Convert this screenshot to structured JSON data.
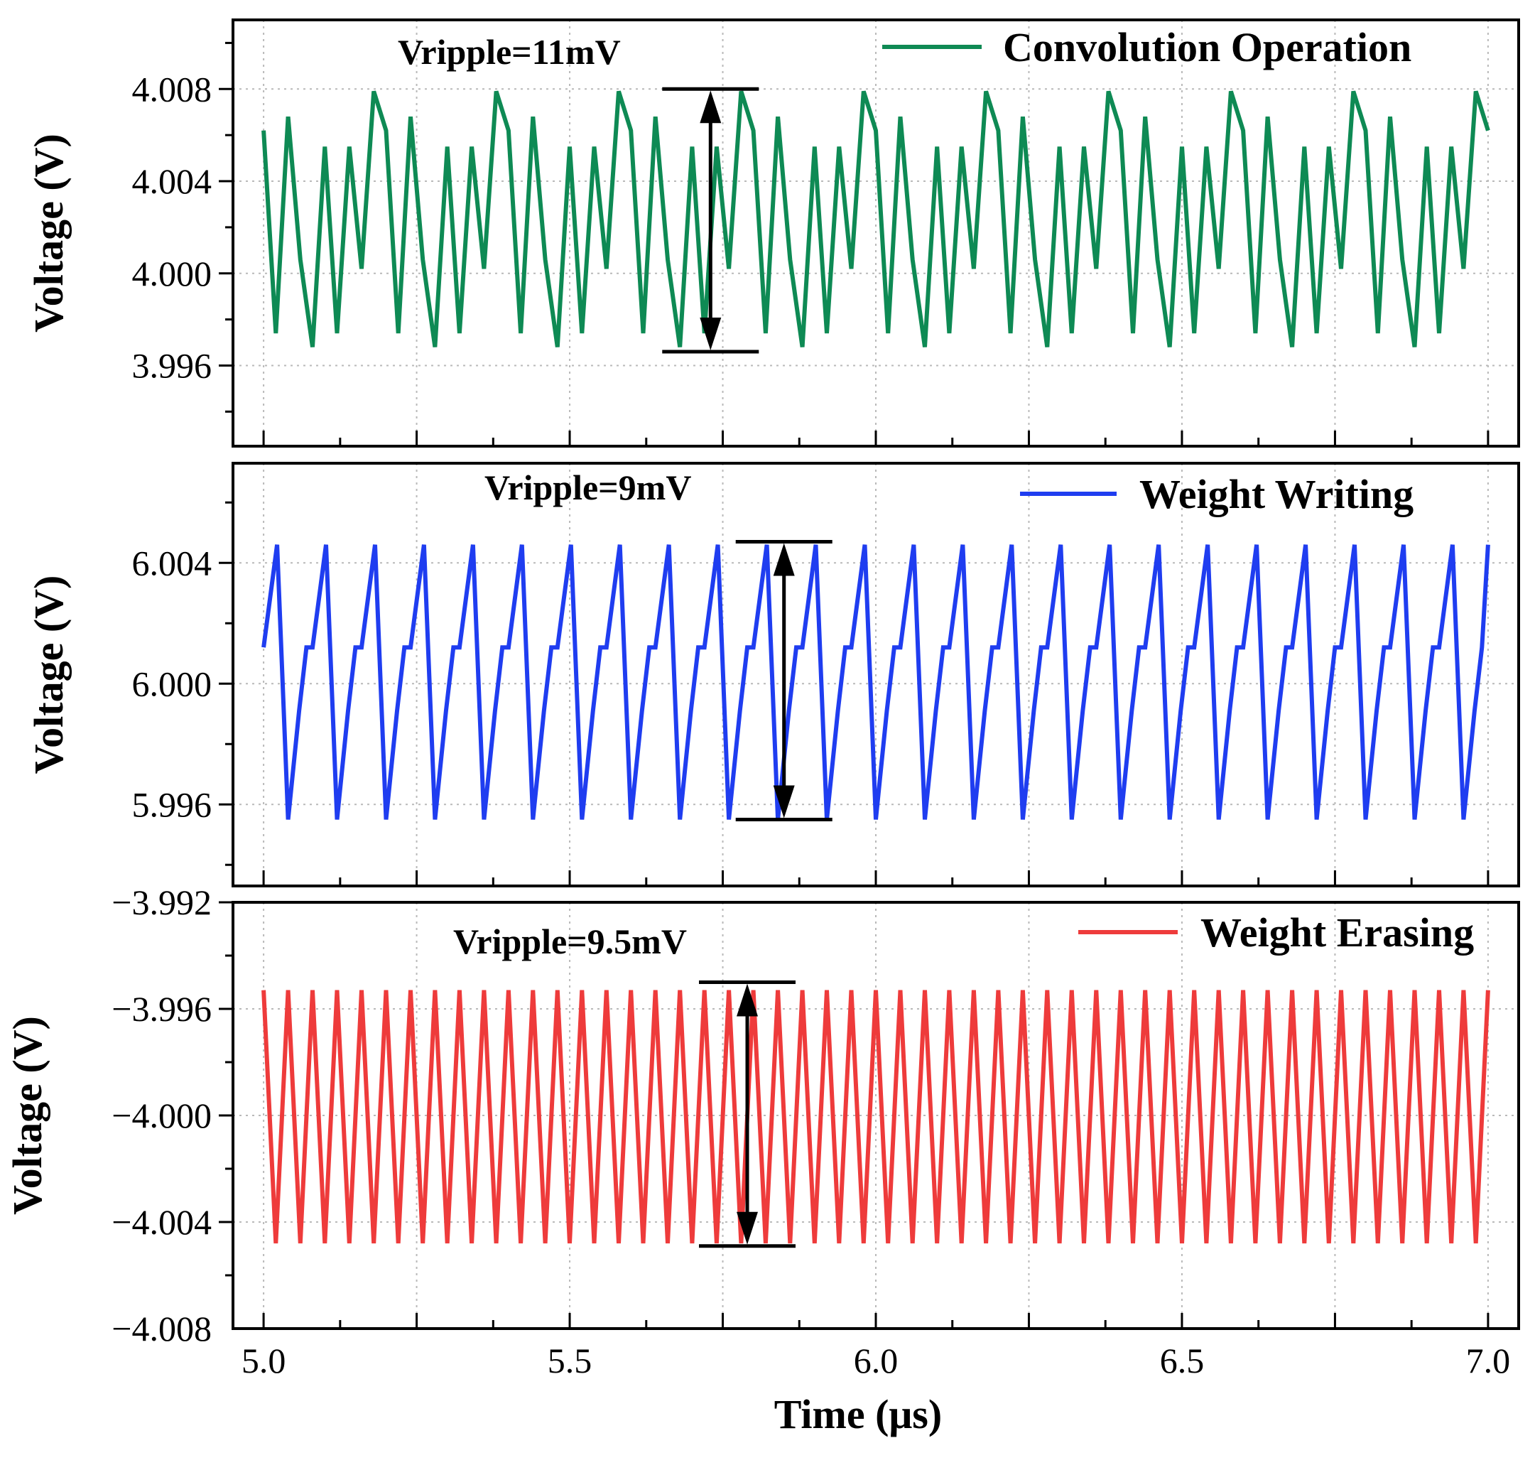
{
  "chart_data": [
    {
      "type": "line",
      "series": [
        {
          "name": "Convolution Operation",
          "color": "#0e8a54"
        }
      ],
      "xlabel": "Time (μs)",
      "ylabel": "Voltage (V)",
      "xlim": [
        4.95,
        7.05
      ],
      "ylim": [
        3.9925,
        4.011
      ],
      "yticks": [
        3.996,
        4.0,
        4.004,
        4.008
      ],
      "ytick_labels": [
        "3.996",
        "4.000",
        "4.004",
        "4.008"
      ],
      "annotation": {
        "text": "Vripple=11mV",
        "x": 5.73,
        "y_top": 4.008,
        "y_bottom": 3.9966
      },
      "legend": "top-right",
      "grid": true,
      "waveform": {
        "x_start": 5.0,
        "x_end": 7.0,
        "period": 0.2,
        "pattern_t": [
          0,
          0.02,
          0.04,
          0.06,
          0.08,
          0.1,
          0.12,
          0.14,
          0.16,
          0.18,
          0.2
        ],
        "pattern_v": [
          4.0062,
          3.9974,
          4.0068,
          4.0006,
          3.9968,
          4.0055,
          3.9974,
          4.0055,
          4.0002,
          4.0079,
          4.0062
        ]
      }
    },
    {
      "type": "line",
      "series": [
        {
          "name": "Weight Writing",
          "color": "#1f3df0"
        }
      ],
      "xlabel": "Time (μs)",
      "ylabel": "Voltage (V)",
      "xlim": [
        4.95,
        7.05
      ],
      "ylim": [
        5.9933,
        6.0073
      ],
      "yticks": [
        5.996,
        6.0,
        6.004
      ],
      "ytick_labels": [
        "5.996",
        "6.000",
        "6.004"
      ],
      "annotation": {
        "text": "Vripple=9mV",
        "x": 5.85,
        "y_top": 6.0047,
        "y_bottom": 5.9955
      },
      "legend": "top-right",
      "grid": true,
      "waveform": {
        "x_start": 5.0,
        "x_end": 7.0,
        "period": 0.08,
        "pattern_t": [
          0,
          0.022,
          0.04,
          0.058,
          0.07,
          0.08
        ],
        "pattern_v": [
          6.0012,
          6.0046,
          5.9955,
          5.9991,
          6.0012,
          6.0046
        ]
      }
    },
    {
      "type": "line",
      "series": [
        {
          "name": "Weight Erasing",
          "color": "#ee3b3b"
        }
      ],
      "xlabel": "Time (μs)",
      "ylabel": "Voltage (V)",
      "xlim": [
        4.95,
        7.05
      ],
      "ylim": [
        -4.008,
        -3.992
      ],
      "yticks": [
        -4.008,
        -4.004,
        -4.0,
        -3.996,
        -3.992
      ],
      "ytick_labels": [
        "−4.008",
        "−4.004",
        "−4.000",
        "−3.996",
        "−3.992"
      ],
      "xticks": [
        5.0,
        5.5,
        6.0,
        6.5,
        7.0
      ],
      "xtick_labels": [
        "5.0",
        "5.5",
        "6.0",
        "6.5",
        "7.0"
      ],
      "annotation": {
        "text": "Vripple=9.5mV",
        "x": 5.79,
        "y_top": -3.995,
        "y_bottom": -4.0049
      },
      "legend": "top-right",
      "grid": true,
      "waveform": {
        "x_start": 5.0,
        "x_end": 7.0,
        "period": 0.04,
        "pattern_t": [
          0,
          0.02,
          0.04
        ],
        "pattern_v": [
          -3.9953,
          -4.0048,
          -3.9953
        ]
      }
    }
  ]
}
